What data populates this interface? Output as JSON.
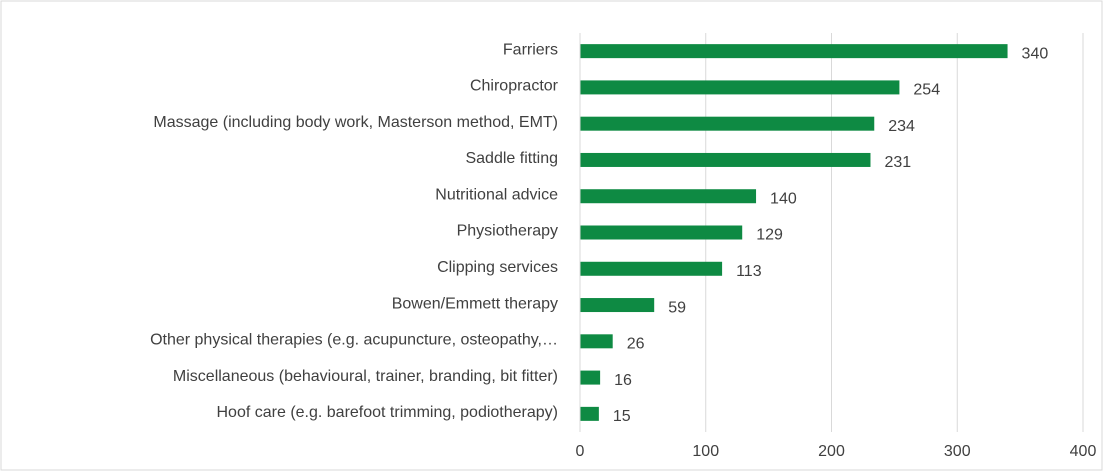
{
  "chart_data": {
    "type": "bar",
    "orientation": "horizontal",
    "categories": [
      "Farriers",
      "Chiropractor",
      "Massage (including body work, Masterson method, EMT)",
      "Saddle fitting",
      "Nutritional advice",
      "Physiotherapy",
      "Clipping services",
      "Bowen/Emmett therapy",
      "Other physical therapies (e.g. acupuncture, osteopathy,…",
      "Miscellaneous (behavioural, trainer, branding, bit fitter)",
      "Hoof care (e.g. barefoot trimming, podiotherapy)"
    ],
    "values": [
      340,
      254,
      234,
      231,
      140,
      129,
      113,
      59,
      26,
      16,
      15
    ],
    "color": "#0e8a43",
    "xlim": [
      0,
      400
    ],
    "xticks": [
      0,
      100,
      200,
      300,
      400
    ],
    "grid": true
  }
}
